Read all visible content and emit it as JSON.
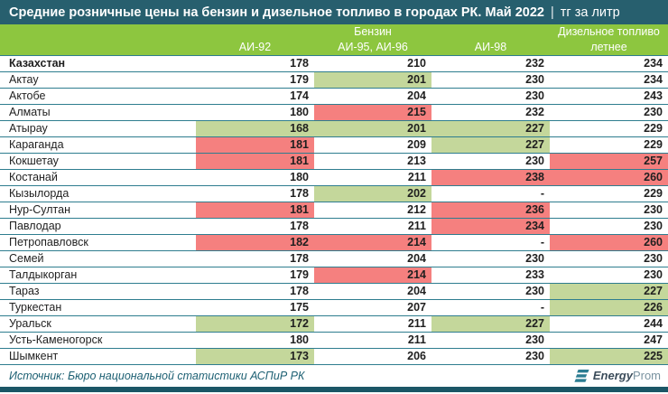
{
  "title": {
    "text": "Средние розничные цены на бензин и дизельное топливо в городах РК. Май 2022",
    "separator": "|",
    "unit": "тг за литр"
  },
  "header": {
    "fuel_group": "Бензин",
    "diesel_group": "Дизельное топливо",
    "columns": [
      "АИ-92",
      "АИ-95, АИ-96",
      "АИ-98",
      "летнее"
    ]
  },
  "table_display": {
    "null_placeholder": "-"
  },
  "chart_data": {
    "type": "table",
    "title": "Средние розничные цены на бензин и дизельное топливо в городах РК. Май 2022",
    "unit": "тг за литр",
    "column_groups": [
      {
        "label": "Бензин",
        "span": 3
      },
      {
        "label": "Дизельное топливо",
        "span": 1
      }
    ],
    "columns": [
      "АИ-92",
      "АИ-95, АИ-96",
      "АИ-98",
      "Дизельное топливо летнее"
    ],
    "highlight_legend": {
      "low": "green fill = low price",
      "high": "red fill = high price"
    },
    "rows": [
      {
        "region": "Казахстан",
        "bold": true,
        "values": [
          178,
          210,
          232,
          234
        ],
        "highlights": [
          "none",
          "none",
          "none",
          "none"
        ]
      },
      {
        "region": "Актау",
        "values": [
          179,
          201,
          230,
          234
        ],
        "highlights": [
          "none",
          "low",
          "none",
          "none"
        ]
      },
      {
        "region": "Актобе",
        "values": [
          174,
          204,
          230,
          243
        ],
        "highlights": [
          "none",
          "none",
          "none",
          "none"
        ]
      },
      {
        "region": "Алматы",
        "values": [
          180,
          215,
          232,
          230
        ],
        "highlights": [
          "none",
          "high",
          "none",
          "none"
        ]
      },
      {
        "region": "Атырау",
        "values": [
          168,
          201,
          227,
          229
        ],
        "highlights": [
          "low",
          "low",
          "low",
          "none"
        ]
      },
      {
        "region": "Караганда",
        "values": [
          181,
          209,
          227,
          229
        ],
        "highlights": [
          "high",
          "none",
          "low",
          "none"
        ]
      },
      {
        "region": "Кокшетау",
        "values": [
          181,
          213,
          230,
          257
        ],
        "highlights": [
          "high",
          "none",
          "none",
          "high"
        ]
      },
      {
        "region": "Костанай",
        "values": [
          180,
          211,
          238,
          260
        ],
        "highlights": [
          "none",
          "none",
          "high",
          "high"
        ]
      },
      {
        "region": "Кызылорда",
        "values": [
          178,
          202,
          null,
          229
        ],
        "highlights": [
          "none",
          "low",
          "none",
          "none"
        ]
      },
      {
        "region": "Нур-Султан",
        "values": [
          181,
          212,
          236,
          230
        ],
        "highlights": [
          "high",
          "none",
          "high",
          "none"
        ]
      },
      {
        "region": "Павлодар",
        "values": [
          178,
          211,
          234,
          230
        ],
        "highlights": [
          "none",
          "none",
          "high",
          "none"
        ]
      },
      {
        "region": "Петропавловск",
        "values": [
          182,
          214,
          null,
          260
        ],
        "highlights": [
          "high",
          "high",
          "none",
          "high"
        ]
      },
      {
        "region": "Семей",
        "values": [
          178,
          204,
          230,
          230
        ],
        "highlights": [
          "none",
          "none",
          "none",
          "none"
        ]
      },
      {
        "region": "Талдыкорган",
        "values": [
          179,
          214,
          233,
          230
        ],
        "highlights": [
          "none",
          "high",
          "none",
          "none"
        ]
      },
      {
        "region": "Тараз",
        "values": [
          178,
          204,
          230,
          227
        ],
        "highlights": [
          "none",
          "none",
          "none",
          "low"
        ]
      },
      {
        "region": "Туркестан",
        "values": [
          175,
          207,
          null,
          226
        ],
        "highlights": [
          "none",
          "none",
          "none",
          "low"
        ]
      },
      {
        "region": "Уральск",
        "values": [
          172,
          211,
          227,
          244
        ],
        "highlights": [
          "low",
          "none",
          "low",
          "none"
        ]
      },
      {
        "region": "Усть-Каменогорск",
        "values": [
          180,
          211,
          230,
          247
        ],
        "highlights": [
          "none",
          "none",
          "none",
          "none"
        ]
      },
      {
        "region": "Шымкент",
        "values": [
          173,
          206,
          230,
          225
        ],
        "highlights": [
          "low",
          "none",
          "none",
          "low"
        ]
      }
    ]
  },
  "footer": {
    "source": "Источник: Бюро национальной статистики АСПиР РК",
    "brand_bold": "Energy",
    "brand_light": "Prom"
  },
  "colors": {
    "title_bar_bg": "#275f6e",
    "header_green": "#8dc63f",
    "highlight_low_green": "#c4d79b",
    "highlight_high_red": "#f5807f",
    "row_line_teal": "#2e7d8f",
    "source_text_teal": "#1d6073",
    "bottom_bar_teal": "#1b5666",
    "text_dark": "#1f1f1f",
    "logo_icon_teal": "#2c7d92"
  }
}
